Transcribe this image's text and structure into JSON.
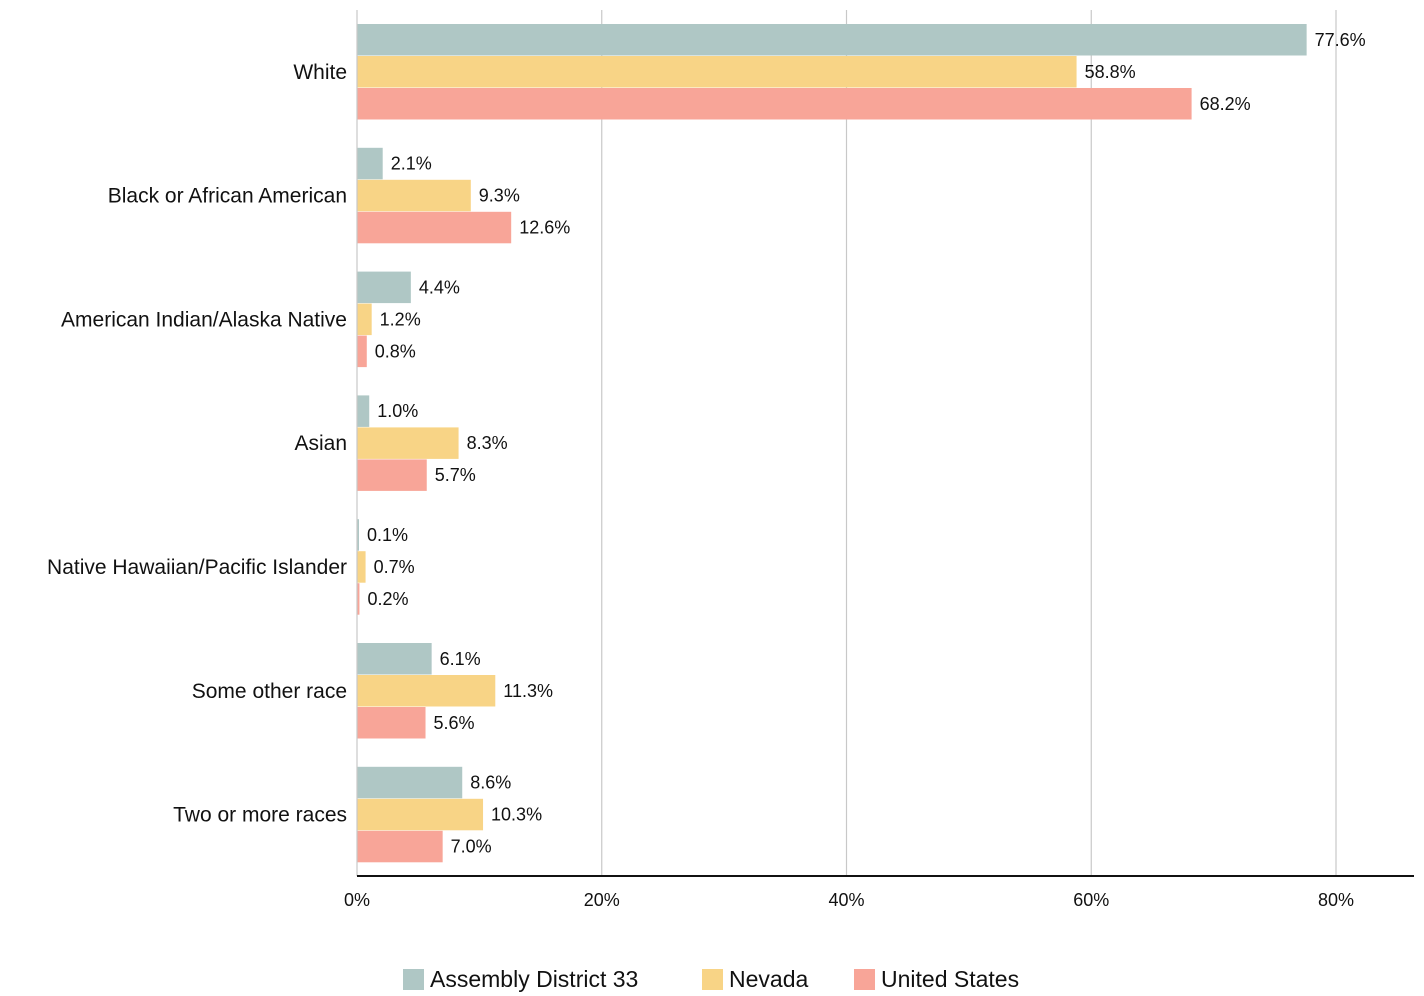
{
  "chart_data": {
    "type": "bar",
    "orientation": "horizontal",
    "categories": [
      "White",
      "Black or African American",
      "American Indian/Alaska Native",
      "Asian",
      "Native Hawaiian/Pacific Islander",
      "Some other race",
      "Two or more races"
    ],
    "series": [
      {
        "name": "Assembly District 33",
        "color": "#afc7c5",
        "values": [
          77.6,
          2.1,
          4.4,
          1.0,
          0.1,
          6.1,
          8.6
        ],
        "labels": [
          "77.6%",
          "2.1%",
          "4.4%",
          "1.0%",
          "0.1%",
          "6.1%",
          "8.6%"
        ]
      },
      {
        "name": "Nevada",
        "color": "#f8d486",
        "values": [
          58.8,
          9.3,
          1.2,
          8.3,
          0.7,
          11.3,
          10.3
        ],
        "labels": [
          "58.8%",
          "9.3%",
          "1.2%",
          "8.3%",
          "0.7%",
          "11.3%",
          "10.3%"
        ]
      },
      {
        "name": "United States",
        "color": "#f8a598",
        "values": [
          68.2,
          12.6,
          0.8,
          5.7,
          0.2,
          5.6,
          7.0
        ],
        "labels": [
          "68.2%",
          "12.6%",
          "0.8%",
          "5.7%",
          "0.2%",
          "5.6%",
          "7.0%"
        ]
      }
    ],
    "xlim": [
      0,
      80
    ],
    "xticks": [
      0,
      20,
      40,
      60,
      80
    ],
    "xtick_labels": [
      "0%",
      "20%",
      "40%",
      "60%",
      "80%"
    ],
    "grid": true,
    "gridline_color": "#c8c8c8",
    "axis_color": "#111111",
    "legend_position": "bottom-center",
    "title": "",
    "xlabel": "",
    "ylabel": ""
  }
}
